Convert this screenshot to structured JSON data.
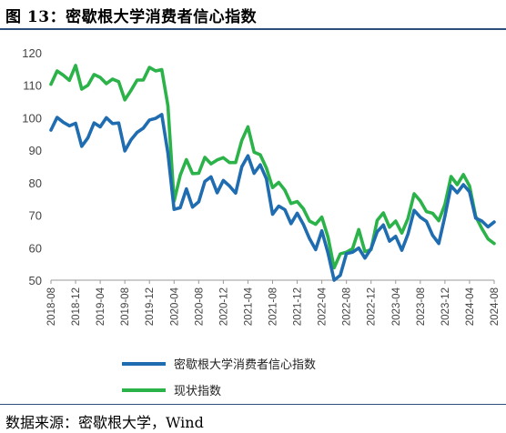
{
  "header": {
    "title": "图 13：密歇根大学消费者信心指数"
  },
  "footer": {
    "source": "数据来源：密歇根大学，Wind"
  },
  "chart_data": {
    "type": "line",
    "ylim": [
      50,
      120
    ],
    "yticks": [
      50,
      60,
      70,
      80,
      90,
      100,
      110,
      120
    ],
    "x_tick_labels": [
      "2018-08",
      "2018-12",
      "2019-04",
      "2019-08",
      "2019-12",
      "2020-04",
      "2020-08",
      "2020-12",
      "2021-04",
      "2021-08",
      "2021-12",
      "2022-04",
      "2022-08",
      "2022-12",
      "2023-04",
      "2023-08",
      "2023-12",
      "2024-04",
      "2024-08"
    ],
    "grid": false,
    "legend_position": "bottom",
    "x": [
      "2018-08",
      "2018-09",
      "2018-10",
      "2018-11",
      "2018-12",
      "2019-01",
      "2019-02",
      "2019-03",
      "2019-04",
      "2019-05",
      "2019-06",
      "2019-07",
      "2019-08",
      "2019-09",
      "2019-10",
      "2019-11",
      "2019-12",
      "2020-01",
      "2020-02",
      "2020-03",
      "2020-04",
      "2020-05",
      "2020-06",
      "2020-07",
      "2020-08",
      "2020-09",
      "2020-10",
      "2020-11",
      "2020-12",
      "2021-01",
      "2021-02",
      "2021-03",
      "2021-04",
      "2021-05",
      "2021-06",
      "2021-07",
      "2021-08",
      "2021-09",
      "2021-10",
      "2021-11",
      "2021-12",
      "2022-01",
      "2022-02",
      "2022-03",
      "2022-04",
      "2022-05",
      "2022-06",
      "2022-07",
      "2022-08",
      "2022-09",
      "2022-10",
      "2022-11",
      "2022-12",
      "2023-01",
      "2023-02",
      "2023-03",
      "2023-04",
      "2023-05",
      "2023-06",
      "2023-07",
      "2023-08",
      "2023-09",
      "2023-10",
      "2023-11",
      "2023-12",
      "2024-01",
      "2024-02",
      "2024-03",
      "2024-04",
      "2024-05",
      "2024-06",
      "2024-07",
      "2024-08"
    ],
    "series": [
      {
        "name": "密歇根大学消费者信心指数",
        "color": "#1f6db0",
        "values": [
          96.2,
          100.1,
          98.6,
          97.5,
          98.3,
          91.2,
          93.8,
          98.4,
          97.2,
          100.0,
          98.2,
          98.4,
          89.8,
          93.2,
          95.5,
          96.8,
          99.3,
          99.8,
          101.0,
          89.1,
          71.8,
          72.3,
          78.1,
          72.5,
          74.1,
          80.4,
          81.8,
          76.9,
          80.7,
          79.0,
          76.8,
          84.9,
          88.3,
          82.9,
          85.5,
          81.2,
          70.3,
          72.8,
          71.7,
          67.4,
          70.6,
          67.2,
          62.8,
          59.4,
          65.2,
          58.4,
          50.0,
          51.5,
          58.2,
          58.6,
          59.9,
          56.8,
          59.7,
          64.9,
          67.0,
          62.0,
          63.5,
          59.2,
          64.2,
          71.5,
          69.4,
          68.1,
          63.8,
          61.3,
          69.7,
          79.0,
          76.9,
          79.4,
          77.2,
          69.1,
          68.2,
          66.4,
          67.9
        ]
      },
      {
        "name": "现状指数",
        "color": "#2bb34a",
        "values": [
          110.3,
          114.4,
          113.1,
          111.5,
          116.1,
          108.8,
          110.0,
          113.3,
          112.4,
          110.5,
          111.9,
          111.1,
          105.5,
          108.4,
          111.6,
          111.6,
          115.5,
          114.4,
          114.8,
          103.7,
          74.3,
          82.3,
          87.1,
          82.8,
          82.9,
          87.8,
          85.8,
          87.0,
          87.7,
          86.2,
          86.2,
          93.0,
          97.2,
          89.4,
          88.6,
          84.5,
          78.5,
          80.1,
          77.7,
          73.6,
          74.2,
          72.0,
          68.2,
          67.2,
          69.4,
          63.3,
          53.8,
          58.1,
          58.6,
          59.7,
          65.6,
          58.8,
          59.4,
          68.4,
          70.7,
          66.3,
          68.2,
          64.5,
          69.0,
          76.6,
          74.4,
          71.1,
          70.6,
          68.3,
          73.3,
          81.9,
          79.4,
          82.5,
          79.0,
          69.6,
          65.9,
          62.7,
          61.3
        ]
      }
    ]
  }
}
